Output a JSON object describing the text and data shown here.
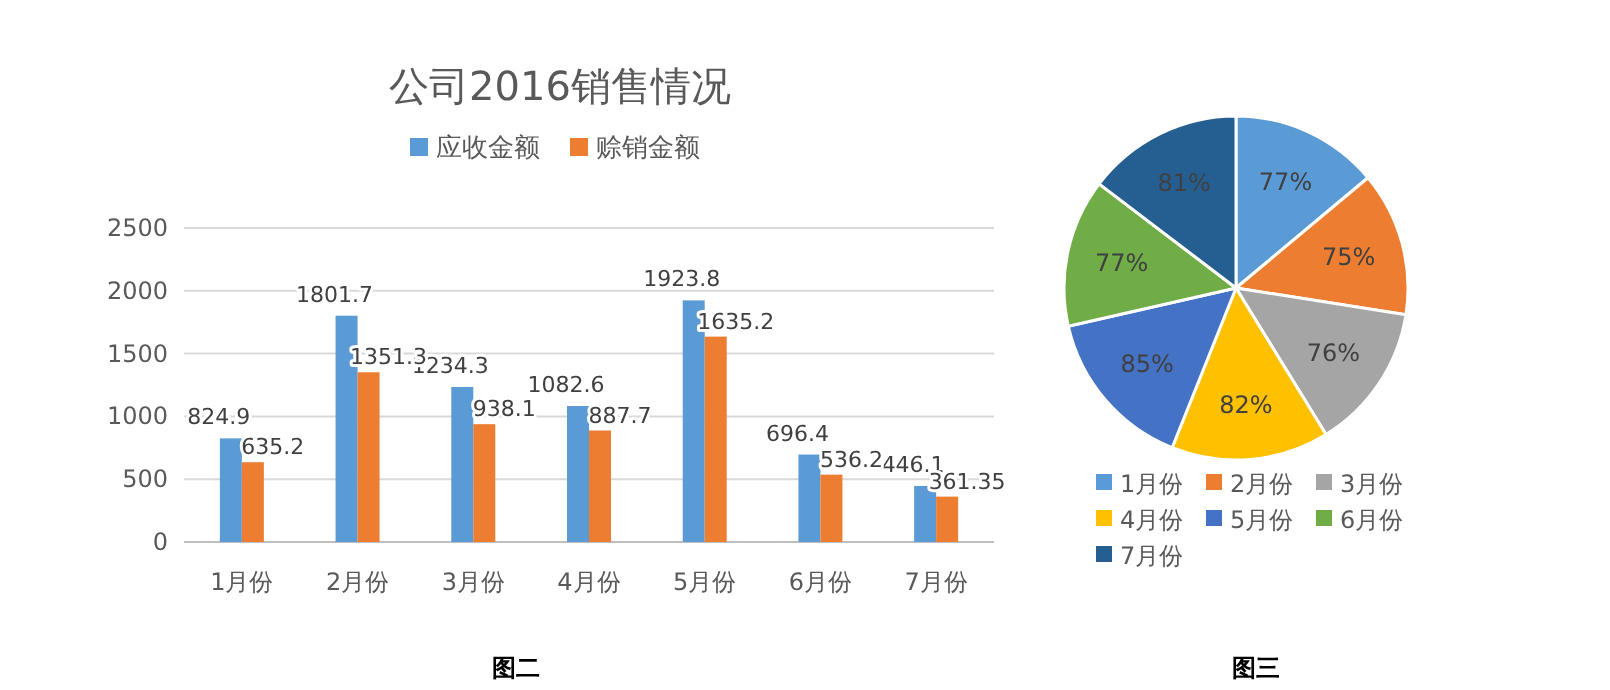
{
  "chart_data": [
    {
      "type": "bar",
      "title": "公司2016销售情况",
      "categories": [
        "1月份",
        "2月份",
        "3月份",
        "4月份",
        "5月份",
        "6月份",
        "7月份"
      ],
      "series": [
        {
          "name": "应收金额",
          "color": "#5b9bd5",
          "values": [
            824.9,
            1801.7,
            1234.3,
            1082.6,
            1923.8,
            696.4,
            446.1
          ]
        },
        {
          "name": "赊销金额",
          "color": "#ed7d31",
          "values": [
            635.2,
            1351.3,
            938.1,
            887.7,
            1635.2,
            536.2,
            361.35
          ]
        }
      ],
      "ylim": [
        0,
        2500
      ],
      "yticks": [
        0,
        500,
        1000,
        1500,
        2000,
        2500
      ],
      "grid": "y",
      "legend": "top",
      "data_labels": true,
      "annotations": [
        "图二"
      ]
    },
    {
      "type": "pie",
      "categories": [
        "1月份",
        "2月份",
        "3月份",
        "4月份",
        "5月份",
        "6月份",
        "7月份"
      ],
      "values": [
        77,
        75,
        76,
        82,
        85,
        77,
        81
      ],
      "colors": [
        "#5b9bd5",
        "#ed7d31",
        "#a5a5a5",
        "#ffc000",
        "#4472c4",
        "#70ad47",
        "#255e91"
      ],
      "value_labels": [
        "77%",
        "75%",
        "76%",
        "82%",
        "85%",
        "77%",
        "81%"
      ],
      "legend": "bottom",
      "annotations": [
        "图三"
      ]
    }
  ]
}
